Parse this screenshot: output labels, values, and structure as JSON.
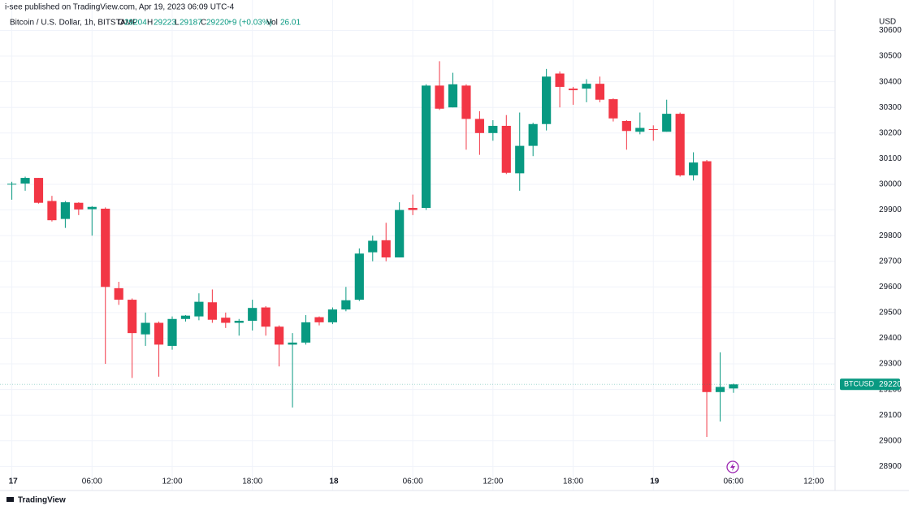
{
  "chart_data": {
    "type": "candlestick",
    "publisher": "i-see published on TradingView.com, Apr 19, 2023 06:09 UTC-4",
    "title": "Bitcoin / U.S. Dollar, 1h, BITSTAMP",
    "legend": {
      "open_label": "O",
      "high_label": "H",
      "low_label": "L",
      "close_label": "C",
      "change": "+9 (+0.03%)",
      "volume_label": "Vol",
      "volume": "26.01"
    },
    "currency": "USD",
    "symbol": "BTCUSD",
    "brand": "TradingView",
    "up_color": "#089981",
    "down_color": "#f23645",
    "grid": true,
    "open": [
      30000,
      30003,
      30025,
      29935,
      29865,
      29928,
      29903,
      29905,
      29595,
      29550,
      29415,
      29460,
      29370,
      29475,
      29485,
      29540,
      29480,
      29460,
      29468,
      29520,
      29445,
      29375,
      29383,
      29482,
      29462,
      29512,
      29550,
      29735,
      29782,
      29715,
      29908,
      29908,
      30385,
      30300,
      30385,
      30255,
      30200,
      30228,
      30043,
      30150,
      30235,
      30432,
      30373,
      30373,
      30392,
      30332,
      30247,
      30205,
      30215,
      30205,
      30275,
      30035,
      30090,
      29190,
      29204
    ],
    "high": [
      30010,
      30030,
      30025,
      29955,
      29935,
      29930,
      29915,
      29910,
      29620,
      29555,
      29500,
      29465,
      29485,
      29490,
      29575,
      29590,
      29500,
      29475,
      29550,
      29525,
      29450,
      29420,
      29490,
      29485,
      29520,
      29600,
      29750,
      29800,
      29850,
      29930,
      29960,
      30390,
      30480,
      30435,
      30390,
      30285,
      30250,
      30270,
      30280,
      30240,
      30450,
      30440,
      30380,
      30410,
      30420,
      30335,
      30250,
      30280,
      30230,
      30330,
      30280,
      30125,
      30095,
      29345,
      29223
    ],
    "low": [
      29940,
      29975,
      29925,
      29855,
      29830,
      29880,
      29800,
      29300,
      29530,
      29245,
      29370,
      29250,
      29355,
      29465,
      29470,
      29460,
      29440,
      29410,
      29430,
      29410,
      29290,
      29130,
      29375,
      29450,
      29455,
      29505,
      29545,
      29700,
      29700,
      29715,
      29880,
      29900,
      30290,
      30300,
      30135,
      30115,
      30170,
      30040,
      29975,
      30110,
      30210,
      30300,
      30310,
      30320,
      30320,
      30245,
      30135,
      30195,
      30170,
      30205,
      30030,
      30015,
      29015,
      29075,
      29187
    ],
    "close": [
      30002,
      30025,
      29928,
      29860,
      29930,
      29902,
      29912,
      29600,
      29550,
      29420,
      29460,
      29375,
      29475,
      29488,
      29542,
      29472,
      29460,
      29468,
      29518,
      29445,
      29375,
      29383,
      29462,
      29462,
      29512,
      29548,
      29730,
      29780,
      29715,
      29900,
      29900,
      30385,
      30295,
      30390,
      30255,
      30200,
      30228,
      30045,
      30150,
      30235,
      30420,
      30380,
      30367,
      30392,
      30330,
      30257,
      30208,
      30220,
      30212,
      30275,
      30035,
      30085,
      29190,
      29210,
      29220
    ],
    "xlim": [
      -0.4,
      61.6
    ],
    "xticks": [
      {
        "value": 0,
        "label": "17"
      },
      {
        "value": 6,
        "label": "06:00"
      },
      {
        "value": 12,
        "label": "12:00"
      },
      {
        "value": 18,
        "label": "18:00"
      },
      {
        "value": 24,
        "label": "18"
      },
      {
        "value": 30,
        "label": "06:00"
      },
      {
        "value": 36,
        "label": "12:00"
      },
      {
        "value": 42,
        "label": "18:00"
      },
      {
        "value": 48,
        "label": "19"
      },
      {
        "value": 54,
        "label": "06:00"
      },
      {
        "value": 60,
        "label": "12:00"
      }
    ],
    "ylim": [
      28860,
      30630
    ],
    "yticks": [
      28900,
      29000,
      29100,
      29200,
      29300,
      29400,
      29500,
      29600,
      29700,
      29800,
      29900,
      30000,
      30100,
      30200,
      30300,
      30400,
      30500,
      30600
    ]
  }
}
